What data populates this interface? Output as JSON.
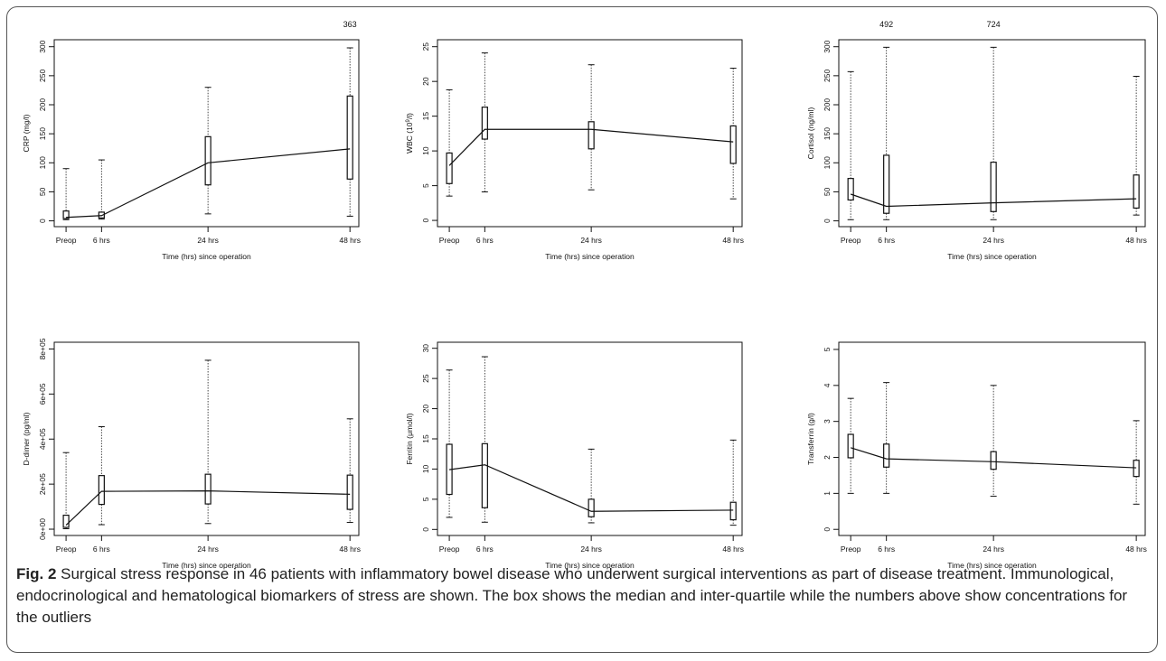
{
  "figure": {
    "caption_label": "Fig. 2",
    "caption_text": " Surgical stress response in 46 patients with inflammatory bowel disease who underwent surgical interventions as part of disease treatment. Immunological, endocrinological and hematological biomarkers of stress are shown. The box shows the median and inter-quartile while the numbers above show concentrations for the outliers"
  },
  "chart_data": [
    {
      "type": "box",
      "ylabel": "CRP (mg/l)",
      "xlabel": "Time (hrs) since operation",
      "x_ticks": [
        {
          "label": "Preop",
          "x": 0
        },
        {
          "label": "6 hrs",
          "x": 6
        },
        {
          "label": "24 hrs",
          "x": 24
        },
        {
          "label": "48 hrs",
          "x": 48
        }
      ],
      "xlim": [
        -2,
        49.5
      ],
      "ylim": [
        -10,
        312
      ],
      "yticks": [
        0,
        50,
        100,
        150,
        200,
        250,
        300
      ],
      "ytick_labels": [
        "0",
        "50",
        "100",
        "150",
        "200",
        "250",
        "300"
      ],
      "boxes": [
        {
          "x": 0,
          "min": 2,
          "q1": 4,
          "median": 6,
          "q3": 17,
          "max": 90
        },
        {
          "x": 6,
          "min": 3,
          "q1": 5,
          "median": 9,
          "q3": 15,
          "max": 105
        },
        {
          "x": 24,
          "min": 12,
          "q1": 62,
          "median": 100,
          "q3": 145,
          "max": 230
        },
        {
          "x": 48,
          "min": 8,
          "q1": 72,
          "median": 124,
          "q3": 215,
          "max": 298
        }
      ],
      "outliers": [
        {
          "x": 48,
          "label": "363"
        }
      ]
    },
    {
      "type": "box",
      "ylabel": "WBC (10^9/l)",
      "xlabel": "Time (hrs) since operation",
      "x_ticks": [
        {
          "label": "Preop",
          "x": 0
        },
        {
          "label": "6 hrs",
          "x": 6
        },
        {
          "label": "24 hrs",
          "x": 24
        },
        {
          "label": "48 hrs",
          "x": 48
        }
      ],
      "xlim": [
        -2,
        49.5
      ],
      "ylim": [
        -0.9,
        26
      ],
      "yticks": [
        0,
        5,
        10,
        15,
        20,
        25
      ],
      "ytick_labels": [
        "0",
        "5",
        "10",
        "15",
        "20",
        "25"
      ],
      "boxes": [
        {
          "x": 0,
          "min": 3.5,
          "q1": 5.3,
          "median": 7.9,
          "q3": 9.7,
          "max": 18.8
        },
        {
          "x": 6,
          "min": 4.1,
          "q1": 11.7,
          "median": 13.1,
          "q3": 16.3,
          "max": 24.1
        },
        {
          "x": 24,
          "min": 4.4,
          "q1": 10.3,
          "median": 13.1,
          "q3": 14.2,
          "max": 22.4
        },
        {
          "x": 48,
          "min": 3.1,
          "q1": 8.2,
          "median": 11.3,
          "q3": 13.6,
          "max": 21.9
        }
      ],
      "outliers": []
    },
    {
      "type": "box",
      "ylabel": "Cortisol (ng/ml)",
      "xlabel": "Time (hrs) since operation",
      "x_ticks": [
        {
          "label": "Preop",
          "x": 0
        },
        {
          "label": "6 hrs",
          "x": 6
        },
        {
          "label": "24 hrs",
          "x": 24
        },
        {
          "label": "48 hrs",
          "x": 48
        }
      ],
      "xlim": [
        -2,
        49.5
      ],
      "ylim": [
        -10,
        312
      ],
      "yticks": [
        0,
        50,
        100,
        150,
        200,
        250,
        300
      ],
      "ytick_labels": [
        "0",
        "50",
        "100",
        "150",
        "200",
        "250",
        "300"
      ],
      "boxes": [
        {
          "x": 0,
          "min": 2,
          "q1": 36,
          "median": 46,
          "q3": 73,
          "max": 257
        },
        {
          "x": 6,
          "min": 2,
          "q1": 13,
          "median": 25,
          "q3": 113,
          "max": 299
        },
        {
          "x": 24,
          "min": 2,
          "q1": 16,
          "median": 31,
          "q3": 101,
          "max": 299
        },
        {
          "x": 48,
          "min": 10,
          "q1": 22,
          "median": 38,
          "q3": 79,
          "max": 249
        }
      ],
      "outliers": [
        {
          "x": 6,
          "label": "492"
        },
        {
          "x": 24,
          "label": "724"
        }
      ]
    },
    {
      "type": "box",
      "ylabel": "D-dimer (pg/ml)",
      "xlabel": "Time (hrs) since operation",
      "x_ticks": [
        {
          "label": "Preop",
          "x": 0
        },
        {
          "label": "6 hrs",
          "x": 6
        },
        {
          "label": "24 hrs",
          "x": 24
        },
        {
          "label": "48 hrs",
          "x": 48
        }
      ],
      "xlim": [
        -2,
        49.5
      ],
      "ylim": [
        -28000,
        830000
      ],
      "yticks": [
        0,
        200000,
        400000,
        600000,
        800000
      ],
      "ytick_labels": [
        "0e+00",
        "2e+05",
        "4e+05",
        "6e+05",
        "8e+05"
      ],
      "boxes": [
        {
          "x": 0,
          "min": 2000,
          "q1": 8000,
          "median": 18000,
          "q3": 62000,
          "max": 340000
        },
        {
          "x": 6,
          "min": 20000,
          "q1": 110000,
          "median": 168000,
          "q3": 238000,
          "max": 455000
        },
        {
          "x": 24,
          "min": 25000,
          "q1": 112000,
          "median": 170000,
          "q3": 244000,
          "max": 750000
        },
        {
          "x": 48,
          "min": 30000,
          "q1": 88000,
          "median": 155000,
          "q3": 240000,
          "max": 490000
        }
      ],
      "outliers": []
    },
    {
      "type": "box",
      "ylabel": "Ferritin (μmol/l)",
      "xlabel": "Time (hrs) since operation",
      "x_ticks": [
        {
          "label": "Preop",
          "x": 0
        },
        {
          "label": "6 hrs",
          "x": 6
        },
        {
          "label": "24 hrs",
          "x": 24
        },
        {
          "label": "48 hrs",
          "x": 48
        }
      ],
      "xlim": [
        -2,
        49.5
      ],
      "ylim": [
        -1,
        31
      ],
      "yticks": [
        0,
        5,
        10,
        15,
        20,
        25,
        30
      ],
      "ytick_labels": [
        "0",
        "5",
        "10",
        "15",
        "20",
        "25",
        "30"
      ],
      "boxes": [
        {
          "x": 0,
          "min": 2,
          "q1": 5.8,
          "median": 9.9,
          "q3": 14.1,
          "max": 26.4
        },
        {
          "x": 6,
          "min": 1.2,
          "q1": 3.6,
          "median": 10.7,
          "q3": 14.2,
          "max": 28.6
        },
        {
          "x": 24,
          "min": 1.1,
          "q1": 2.1,
          "median": 3.0,
          "q3": 5.0,
          "max": 13.3
        },
        {
          "x": 48,
          "min": 0.7,
          "q1": 1.6,
          "median": 3.2,
          "q3": 4.5,
          "max": 14.8
        }
      ],
      "outliers": []
    },
    {
      "type": "box",
      "ylabel": "Transferrin (g/l)",
      "xlabel": "Time (hrs) since operation",
      "x_ticks": [
        {
          "label": "Preop",
          "x": 0
        },
        {
          "label": "6 hrs",
          "x": 6
        },
        {
          "label": "24 hrs",
          "x": 24
        },
        {
          "label": "48 hrs",
          "x": 48
        }
      ],
      "xlim": [
        -2,
        49.5
      ],
      "ylim": [
        -0.17,
        5.2
      ],
      "yticks": [
        0,
        1,
        2,
        3,
        4,
        5
      ],
      "ytick_labels": [
        "0",
        "1",
        "2",
        "3",
        "4",
        "5"
      ],
      "boxes": [
        {
          "x": 0,
          "min": 1.0,
          "q1": 1.99,
          "median": 2.27,
          "q3": 2.64,
          "max": 3.64
        },
        {
          "x": 6,
          "min": 1.0,
          "q1": 1.73,
          "median": 1.96,
          "q3": 2.37,
          "max": 4.08
        },
        {
          "x": 24,
          "min": 0.92,
          "q1": 1.67,
          "median": 1.88,
          "q3": 2.16,
          "max": 4.0
        },
        {
          "x": 48,
          "min": 0.7,
          "q1": 1.47,
          "median": 1.71,
          "q3": 1.92,
          "max": 3.02
        }
      ],
      "outliers": []
    }
  ]
}
